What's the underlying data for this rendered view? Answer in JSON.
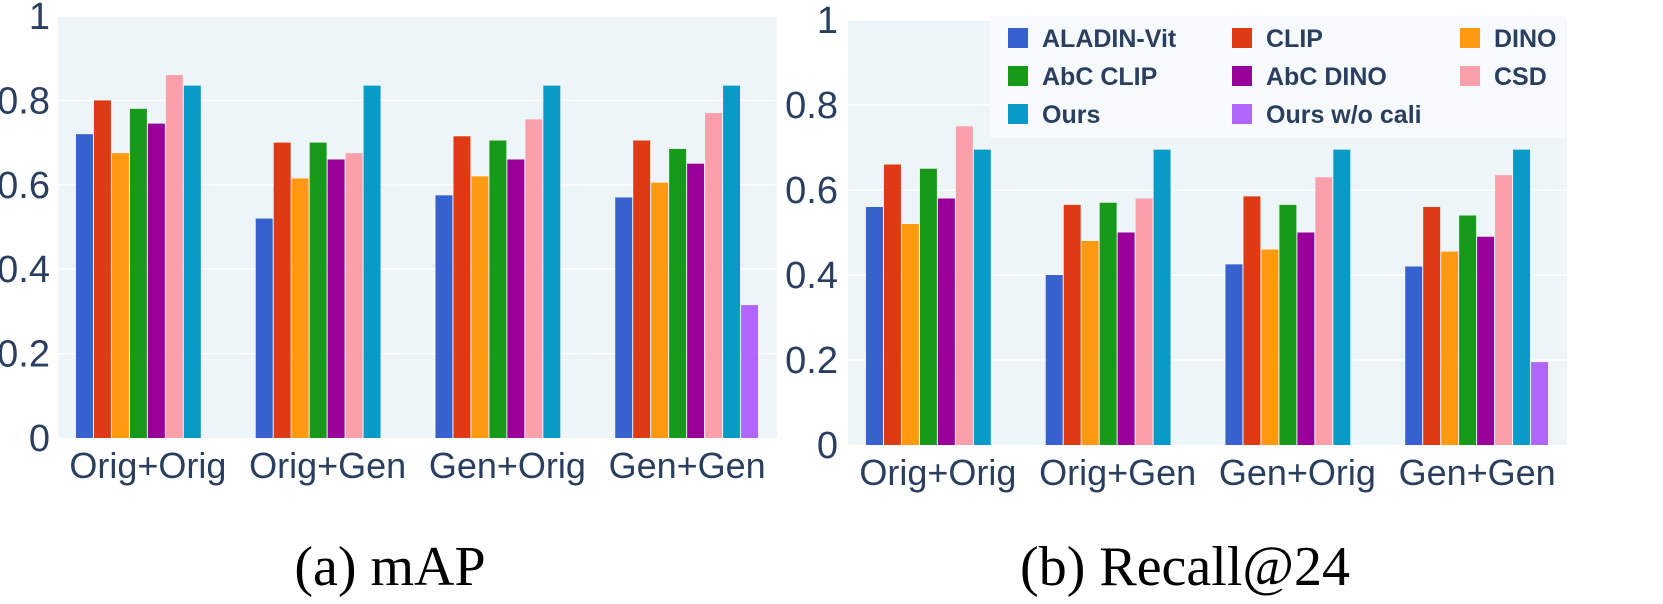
{
  "colors": {
    "plot_bg": "#eef5f9",
    "grid": "#ffffff",
    "text": "#2a3f5f",
    "legend_bg": "#f7fafc"
  },
  "series_colors": [
    "#3761cf",
    "#de3a13",
    "#ff9a10",
    "#17991a",
    "#990099",
    "#fba0ab",
    "#099bc7",
    "#b266f9"
  ],
  "legend": {
    "items": [
      "ALADIN-Vit",
      "CLIP",
      "DINO",
      "AbC CLIP",
      "AbC DINO",
      "CSD",
      "Ours",
      "Ours w/o cali"
    ]
  },
  "captions": [
    "(a) mAP",
    "(b) Recall@24"
  ],
  "chart_data": [
    {
      "type": "bar",
      "title": "(a) mAP",
      "xlabel": "",
      "ylabel": "",
      "ylim": [
        0,
        1
      ],
      "yticks": [
        "0",
        "0.2",
        "0.4",
        "0.6",
        "0.8",
        "1"
      ],
      "grid": true,
      "categories": [
        "Orig+Orig",
        "Orig+Gen",
        "Gen+Orig",
        "Gen+Gen"
      ],
      "series": [
        {
          "name": "ALADIN-Vit",
          "values": [
            0.72,
            0.52,
            0.575,
            0.57
          ]
        },
        {
          "name": "CLIP",
          "values": [
            0.8,
            0.7,
            0.715,
            0.705
          ]
        },
        {
          "name": "DINO",
          "values": [
            0.675,
            0.615,
            0.62,
            0.605
          ]
        },
        {
          "name": "AbC CLIP",
          "values": [
            0.78,
            0.7,
            0.705,
            0.685
          ]
        },
        {
          "name": "AbC DINO",
          "values": [
            0.745,
            0.66,
            0.66,
            0.65
          ]
        },
        {
          "name": "CSD",
          "values": [
            0.86,
            0.675,
            0.755,
            0.77
          ]
        },
        {
          "name": "Ours",
          "values": [
            0.835,
            0.835,
            0.835,
            0.835
          ]
        },
        {
          "name": "Ours w/o cali",
          "values": [
            null,
            null,
            null,
            0.315
          ]
        }
      ]
    },
    {
      "type": "bar",
      "title": "(b) Recall@24",
      "xlabel": "",
      "ylabel": "",
      "ylim": [
        0,
        1
      ],
      "yticks": [
        "0",
        "0.2",
        "0.4",
        "0.6",
        "0.8",
        "1"
      ],
      "grid": true,
      "legend_position": "top-right",
      "categories": [
        "Orig+Orig",
        "Orig+Gen",
        "Gen+Orig",
        "Gen+Gen"
      ],
      "series": [
        {
          "name": "ALADIN-Vit",
          "values": [
            0.56,
            0.4,
            0.425,
            0.42
          ]
        },
        {
          "name": "CLIP",
          "values": [
            0.66,
            0.565,
            0.585,
            0.56
          ]
        },
        {
          "name": "DINO",
          "values": [
            0.52,
            0.48,
            0.46,
            0.455
          ]
        },
        {
          "name": "AbC CLIP",
          "values": [
            0.65,
            0.57,
            0.565,
            0.54
          ]
        },
        {
          "name": "AbC DINO",
          "values": [
            0.58,
            0.5,
            0.5,
            0.49
          ]
        },
        {
          "name": "CSD",
          "values": [
            0.75,
            0.58,
            0.63,
            0.635
          ]
        },
        {
          "name": "Ours",
          "values": [
            0.695,
            0.695,
            0.695,
            0.695
          ]
        },
        {
          "name": "Ours w/o cali",
          "values": [
            null,
            null,
            null,
            0.195
          ]
        }
      ]
    }
  ]
}
